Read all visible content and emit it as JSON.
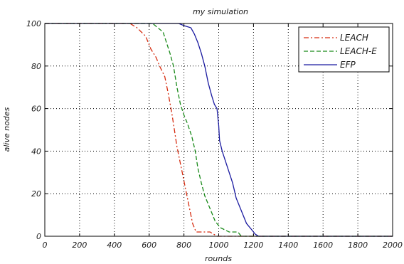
{
  "chart_data": {
    "type": "line",
    "title": "my simulation",
    "xlabel": "rounds",
    "ylabel": "alive nodes",
    "xlim": [
      0,
      2000
    ],
    "ylim": [
      0,
      100
    ],
    "xticks": [
      "0",
      "200",
      "400",
      "600",
      "800",
      "1000",
      "1200",
      "1400",
      "1600",
      "1800",
      "2000"
    ],
    "yticks": [
      "0",
      "20",
      "40",
      "60",
      "80",
      "100"
    ],
    "grid": true,
    "legend_position": "top-right",
    "series": [
      {
        "name": "LEACH",
        "color": "#d62c10",
        "dash": "dash-dot",
        "points": [
          [
            0,
            100
          ],
          [
            490,
            100
          ],
          [
            530,
            98
          ],
          [
            580,
            94
          ],
          [
            610,
            88
          ],
          [
            640,
            84
          ],
          [
            660,
            80
          ],
          [
            690,
            75
          ],
          [
            710,
            67
          ],
          [
            730,
            58
          ],
          [
            745,
            50
          ],
          [
            760,
            42
          ],
          [
            775,
            36
          ],
          [
            790,
            30
          ],
          [
            810,
            22
          ],
          [
            830,
            14
          ],
          [
            850,
            6
          ],
          [
            870,
            2
          ],
          [
            950,
            2
          ],
          [
            990,
            0
          ],
          [
            2000,
            0
          ]
        ]
      },
      {
        "name": "LEACH-E",
        "color": "#1a8a1a",
        "dash": "dashed",
        "points": [
          [
            0,
            100
          ],
          [
            620,
            100
          ],
          [
            650,
            98
          ],
          [
            680,
            96
          ],
          [
            700,
            91
          ],
          [
            720,
            86
          ],
          [
            740,
            80
          ],
          [
            760,
            70
          ],
          [
            780,
            62
          ],
          [
            800,
            57
          ],
          [
            820,
            53
          ],
          [
            845,
            47
          ],
          [
            865,
            40
          ],
          [
            880,
            32
          ],
          [
            900,
            25
          ],
          [
            920,
            19
          ],
          [
            950,
            13
          ],
          [
            980,
            7
          ],
          [
            1010,
            4
          ],
          [
            1060,
            2
          ],
          [
            1110,
            2
          ],
          [
            1130,
            0
          ],
          [
            2000,
            0
          ]
        ]
      },
      {
        "name": "EFP",
        "color": "#1a1aa0",
        "dash": "solid",
        "points": [
          [
            0,
            100
          ],
          [
            770,
            100
          ],
          [
            800,
            99
          ],
          [
            840,
            98
          ],
          [
            860,
            95
          ],
          [
            880,
            91
          ],
          [
            900,
            86
          ],
          [
            920,
            80
          ],
          [
            940,
            72
          ],
          [
            960,
            66
          ],
          [
            975,
            62
          ],
          [
            990,
            60
          ],
          [
            1000,
            52
          ],
          [
            1005,
            45
          ],
          [
            1020,
            40
          ],
          [
            1040,
            35
          ],
          [
            1060,
            30
          ],
          [
            1080,
            25
          ],
          [
            1100,
            18
          ],
          [
            1130,
            12
          ],
          [
            1160,
            6
          ],
          [
            1190,
            3
          ],
          [
            1210,
            1
          ],
          [
            1230,
            0
          ],
          [
            2000,
            0
          ]
        ]
      }
    ]
  }
}
